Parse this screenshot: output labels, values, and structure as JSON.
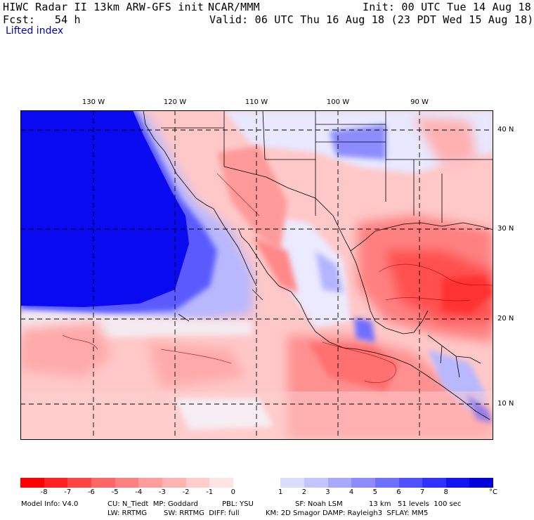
{
  "header": {
    "model_title": "HIWC Radar II 13km ARW-GFS init",
    "org": "NCAR/MMM",
    "init": "Init: 00 UTC Tue 14 Aug 18",
    "fcst": "Fcst:   54 h",
    "valid": "Valid: 06 UTC Thu 16 Aug 18 (23 PDT Wed 15 Aug 18)",
    "field": "Lifted index"
  },
  "map": {
    "lon_labels": [
      "130 W",
      "120 W",
      "110 W",
      "100 W",
      "90 W"
    ],
    "lat_labels": [
      "40 N",
      "30 N",
      "20 N",
      "10 N"
    ]
  },
  "colorbar": {
    "colors": [
      "#ff0000",
      "#ff2020",
      "#ff4444",
      "#ff6666",
      "#ff8080",
      "#ff9c9c",
      "#ffb4b4",
      "#ffcccc",
      "#ffe4e4",
      "#ffffff",
      "#ffffff",
      "#dcdcff",
      "#c4c4ff",
      "#a8a8ff",
      "#8c8cff",
      "#7070ff",
      "#5050ff",
      "#3030ff",
      "#1414f0",
      "#0000d8"
    ],
    "ticks": [
      "-8",
      "-7",
      "-6",
      "-5",
      "-4",
      "-3",
      "-2",
      "-1",
      "0",
      "1",
      "2",
      "3",
      "4",
      "5",
      "6",
      "7",
      "8"
    ],
    "unit": "°C"
  },
  "footer": {
    "line1_a": "Model Info: V4.0",
    "line1_b": "CU: N_Tiedt  MP: Goddard",
    "line1_c": "PBL: YSU",
    "line1_d": "SF: Noah LSM",
    "line1_e": "13 km   51 levels  100 sec",
    "line2_a": "LW: RRTMG",
    "line2_b": "SW: RRTMG  DIFF: full",
    "line2_c": "KM: 2D Smagor DAMP: Rayleigh3  SFLAY: MM5"
  }
}
